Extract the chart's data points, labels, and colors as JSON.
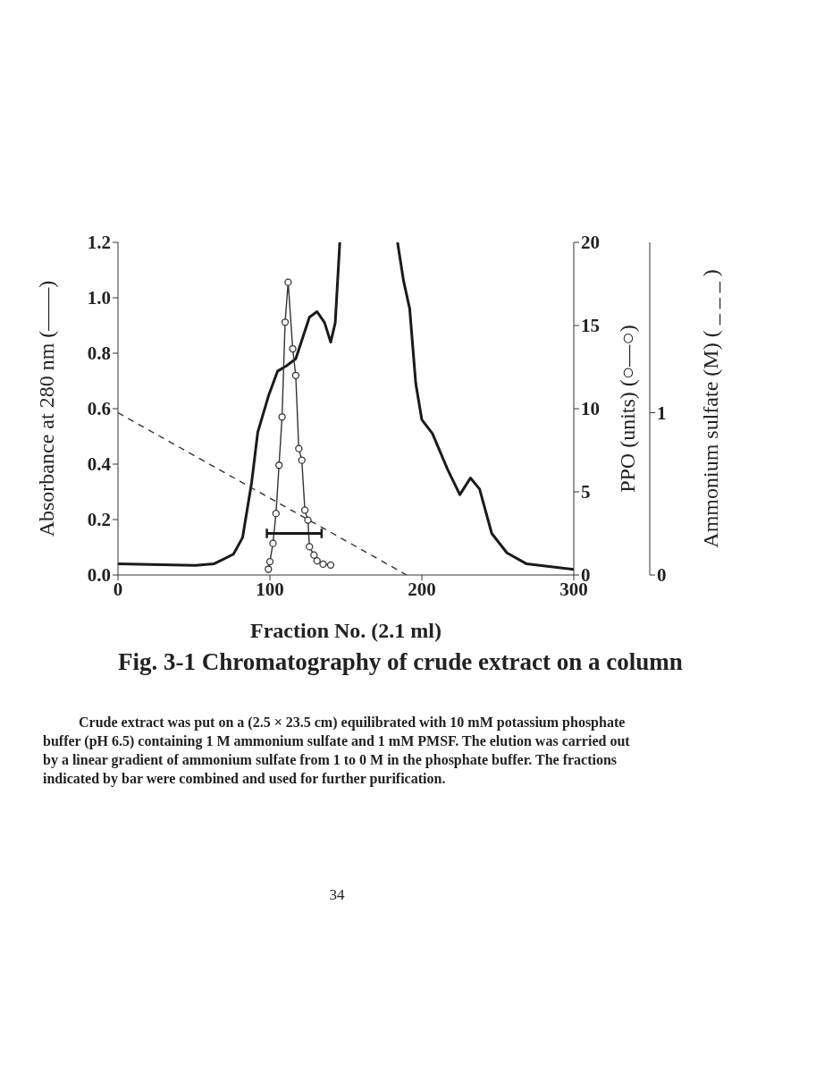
{
  "chart_data": {
    "type": "line",
    "title": "Fig. 3-1 Chromatography of crude extract on a column",
    "xlabel": "Fraction No. (2.1 ml)",
    "ylabel": "Absorbance at 280 nm (——)",
    "y2label": "PPO (units) (○—○)",
    "y3label": "Ammonium sulfate (M) ( _ _ _ )",
    "annotations": [
      "Crude extract was put on a (2.5 × 23.5 cm) equilibrated with 10 mM potassium phosphate buffer (pH 6.5) containing 1 M ammonium sulfate and 1 mM PMSF. The elution was carried out by a linear gradient of ammonium sulfate from 1 to 0 M in the phosphate buffer. The fractions indicated by bar were combined and used for further purification.",
      "34"
    ],
    "xlim": [
      0,
      300
    ],
    "xticks": [
      0,
      100,
      200,
      300
    ],
    "ylim": [
      0,
      1.2
    ],
    "yticks": [
      {
        "value": 0,
        "label": "0.0"
      },
      0.2,
      0.4,
      0.6,
      0.8,
      {
        "value": 1,
        "label": "1.0"
      },
      1.2
    ],
    "y2lim": [
      0,
      20
    ],
    "y2ticks": [
      0,
      5,
      10,
      15,
      20
    ],
    "y3lim": [
      0,
      2.05
    ],
    "y3ticks": [
      0,
      1
    ],
    "grid": false,
    "series": [
      {
        "color": "#1a1a1a",
        "marker": "none",
        "line_style": "solid",
        "x": [
          0,
          51,
          63,
          76,
          82,
          88,
          92,
          99,
          105,
          111,
          117,
          126,
          131,
          136,
          140,
          143,
          146,
          165,
          184,
          188,
          192,
          196,
          200,
          207,
          217,
          225,
          232,
          238,
          246,
          256,
          269,
          300
        ],
        "values": [
          0.04,
          0.035,
          0.04,
          0.075,
          0.135,
          0.335,
          0.515,
          0.645,
          0.735,
          0.755,
          0.78,
          0.93,
          0.95,
          0.91,
          0.84,
          0.91,
          1.2,
          null,
          1.2,
          1.06,
          0.96,
          0.69,
          0.56,
          0.51,
          0.38,
          0.29,
          0.35,
          0.31,
          0.15,
          0.08,
          0.04,
          0.02
        ]
      },
      {
        "axis": "y2",
        "color": "#333333",
        "marker": "circle",
        "line_style": "solid",
        "x": [
          99,
          100,
          102,
          104,
          106,
          108,
          110,
          112,
          115,
          117,
          119,
          121,
          123,
          125,
          126,
          129,
          131,
          135,
          140
        ],
        "values": [
          0.35,
          0.8,
          1.9,
          3.7,
          6.6,
          9.5,
          15.2,
          17.6,
          13.6,
          12.0,
          7.6,
          6.9,
          3.9,
          3.3,
          1.7,
          1.2,
          0.85,
          0.65,
          0.6
        ]
      },
      {
        "axis": "y3",
        "color": "#333333",
        "marker": "none",
        "line_style": "dashed",
        "x": [
          0,
          190
        ],
        "values": [
          1,
          0
        ]
      },
      {
        "color": "#1a1a1a",
        "marker": "none",
        "line_style": "solid",
        "x": [
          98,
          134
        ],
        "values": [
          0.15,
          0.15
        ],
        "errors": [
          0.017,
          0.017
        ]
      }
    ]
  }
}
